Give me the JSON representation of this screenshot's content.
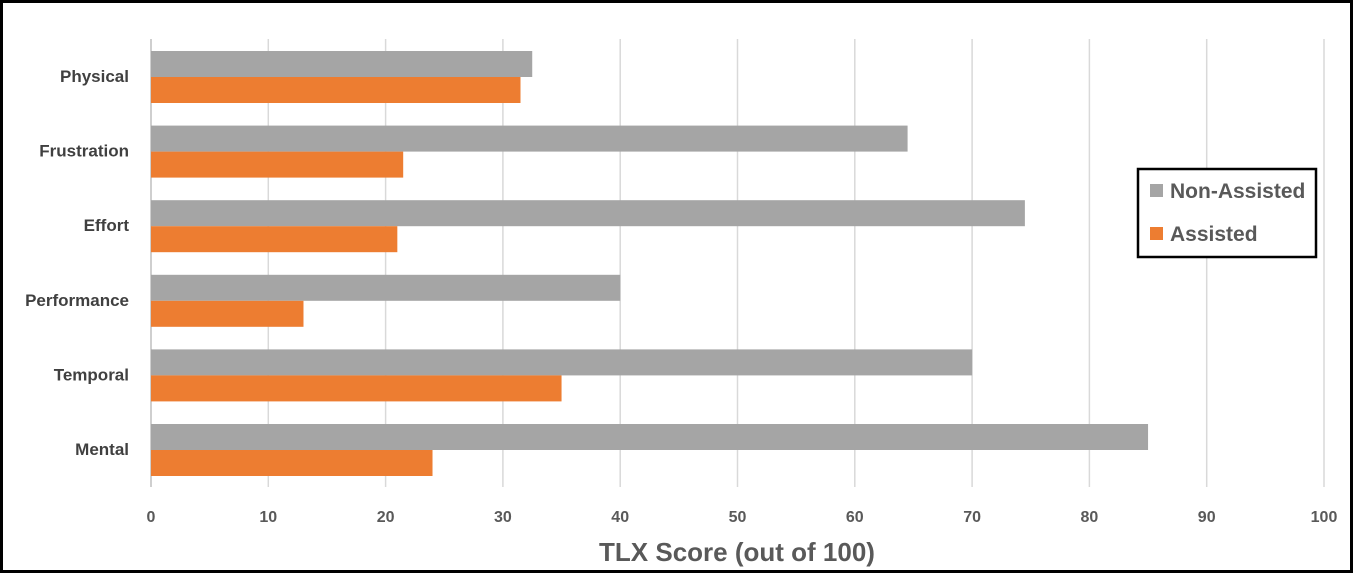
{
  "chart_data": {
    "type": "bar",
    "orientation": "horizontal",
    "categories": [
      "Physical",
      "Frustration",
      "Effort",
      "Performance",
      "Temporal",
      "Mental"
    ],
    "series": [
      {
        "name": "Non-Assisted",
        "color": "#a5a5a5",
        "values": [
          32.5,
          64.5,
          74.5,
          40,
          70,
          85
        ]
      },
      {
        "name": "Assisted",
        "color": "#ed7d31",
        "values": [
          31.5,
          21.5,
          21,
          13,
          35,
          24
        ]
      }
    ],
    "xlabel": "TLX Score (out of 100)",
    "xlim": [
      0,
      100
    ],
    "xticks": [
      "0",
      "10",
      "20",
      "30",
      "40",
      "50",
      "60",
      "70",
      "80",
      "90",
      "100"
    ],
    "grid": "vertical",
    "legend_position": "right"
  }
}
